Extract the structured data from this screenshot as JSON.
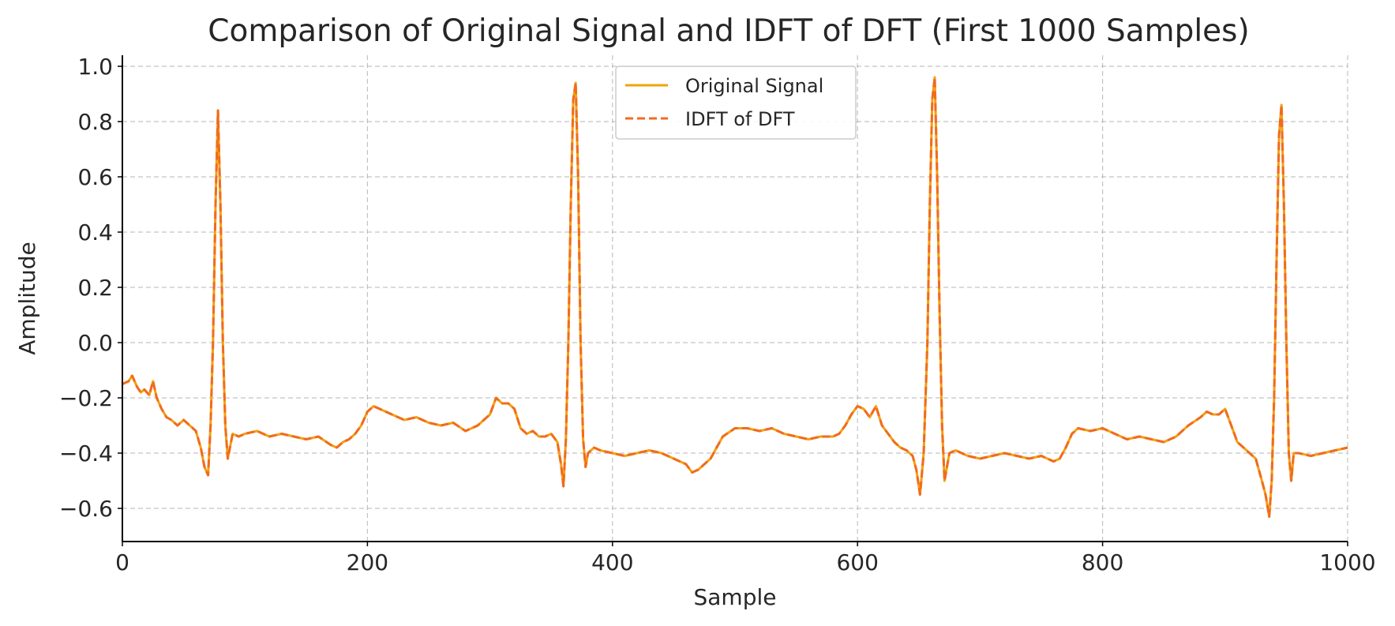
{
  "chart_data": {
    "type": "line",
    "title": "Comparison of Original Signal and IDFT of DFT (First 1000 Samples)",
    "xlabel": "Sample",
    "ylabel": "Amplitude",
    "xlim": [
      0,
      1000
    ],
    "ylim": [
      -0.72,
      1.04
    ],
    "x_ticks": [
      0,
      200,
      400,
      600,
      800,
      1000
    ],
    "x_tick_labels": [
      "0",
      "200",
      "400",
      "600",
      "800",
      "1000"
    ],
    "y_ticks": [
      -0.6,
      -0.4,
      -0.2,
      0.0,
      0.2,
      0.4,
      0.6,
      0.8,
      1.0
    ],
    "y_tick_labels": [
      "−0.6",
      "−0.4",
      "−0.2",
      "0.0",
      "0.2",
      "0.4",
      "0.6",
      "0.8",
      "1.0"
    ],
    "grid": true,
    "legend_position": "top-center",
    "series": [
      {
        "name": "Original Signal",
        "color": "#f0a30a",
        "style": "solid",
        "x": [
          0,
          5,
          8,
          12,
          15,
          18,
          22,
          25,
          28,
          32,
          36,
          40,
          45,
          50,
          55,
          60,
          64,
          67,
          70,
          72,
          74,
          76,
          78,
          80,
          82,
          84,
          86,
          90,
          95,
          100,
          110,
          120,
          130,
          140,
          150,
          160,
          170,
          175,
          180,
          185,
          190,
          195,
          200,
          205,
          210,
          220,
          230,
          240,
          250,
          260,
          270,
          280,
          290,
          300,
          305,
          310,
          315,
          320,
          325,
          330,
          335,
          340,
          345,
          350,
          355,
          358,
          360,
          362,
          364,
          366,
          368,
          370,
          372,
          374,
          376,
          378,
          380,
          385,
          390,
          400,
          410,
          420,
          430,
          440,
          450,
          460,
          465,
          470,
          475,
          480,
          485,
          490,
          500,
          510,
          520,
          530,
          540,
          550,
          560,
          570,
          580,
          585,
          590,
          595,
          600,
          605,
          610,
          615,
          620,
          625,
          630,
          635,
          640,
          645,
          648,
          651,
          654,
          657,
          659,
          661,
          663,
          665,
          667,
          669,
          671,
          675,
          680,
          690,
          700,
          710,
          720,
          730,
          740,
          750,
          760,
          765,
          770,
          775,
          780,
          790,
          800,
          810,
          820,
          830,
          840,
          850,
          860,
          870,
          880,
          885,
          890,
          895,
          900,
          905,
          910,
          915,
          920,
          925,
          930,
          933,
          936,
          938,
          940,
          942,
          944,
          946,
          948,
          950,
          952,
          954,
          956,
          960,
          970,
          980,
          990,
          1000
        ],
        "values": [
          -0.15,
          -0.14,
          -0.12,
          -0.16,
          -0.18,
          -0.17,
          -0.19,
          -0.14,
          -0.2,
          -0.24,
          -0.27,
          -0.28,
          -0.3,
          -0.28,
          -0.3,
          -0.32,
          -0.38,
          -0.45,
          -0.48,
          -0.3,
          0.0,
          0.5,
          0.84,
          0.5,
          0.0,
          -0.3,
          -0.42,
          -0.33,
          -0.34,
          -0.33,
          -0.32,
          -0.34,
          -0.33,
          -0.34,
          -0.35,
          -0.34,
          -0.37,
          -0.38,
          -0.36,
          -0.35,
          -0.33,
          -0.3,
          -0.25,
          -0.23,
          -0.24,
          -0.26,
          -0.28,
          -0.27,
          -0.29,
          -0.3,
          -0.29,
          -0.32,
          -0.3,
          -0.26,
          -0.2,
          -0.22,
          -0.22,
          -0.24,
          -0.31,
          -0.33,
          -0.32,
          -0.34,
          -0.34,
          -0.33,
          -0.36,
          -0.44,
          -0.52,
          -0.35,
          0.0,
          0.5,
          0.88,
          0.94,
          0.6,
          0.0,
          -0.35,
          -0.45,
          -0.4,
          -0.38,
          -0.39,
          -0.4,
          -0.41,
          -0.4,
          -0.39,
          -0.4,
          -0.42,
          -0.44,
          -0.47,
          -0.46,
          -0.44,
          -0.42,
          -0.38,
          -0.34,
          -0.31,
          -0.31,
          -0.32,
          -0.31,
          -0.33,
          -0.34,
          -0.35,
          -0.34,
          -0.34,
          -0.33,
          -0.3,
          -0.26,
          -0.23,
          -0.24,
          -0.27,
          -0.23,
          -0.3,
          -0.33,
          -0.36,
          -0.38,
          -0.39,
          -0.41,
          -0.46,
          -0.55,
          -0.4,
          0.0,
          0.5,
          0.88,
          0.96,
          0.6,
          0.1,
          -0.3,
          -0.5,
          -0.4,
          -0.39,
          -0.41,
          -0.42,
          -0.41,
          -0.4,
          -0.41,
          -0.42,
          -0.41,
          -0.43,
          -0.42,
          -0.38,
          -0.33,
          -0.31,
          -0.32,
          -0.31,
          -0.33,
          -0.35,
          -0.34,
          -0.35,
          -0.36,
          -0.34,
          -0.3,
          -0.27,
          -0.25,
          -0.26,
          -0.26,
          -0.24,
          -0.3,
          -0.36,
          -0.38,
          -0.4,
          -0.42,
          -0.5,
          -0.55,
          -0.63,
          -0.5,
          -0.2,
          0.3,
          0.75,
          0.86,
          0.5,
          0.0,
          -0.4,
          -0.5,
          -0.4,
          -0.4,
          -0.41,
          -0.4,
          -0.39,
          -0.38
        ]
      },
      {
        "name": "IDFT of DFT",
        "color": "#f26a21",
        "style": "dashed",
        "same_values_as": "Original Signal"
      }
    ]
  }
}
